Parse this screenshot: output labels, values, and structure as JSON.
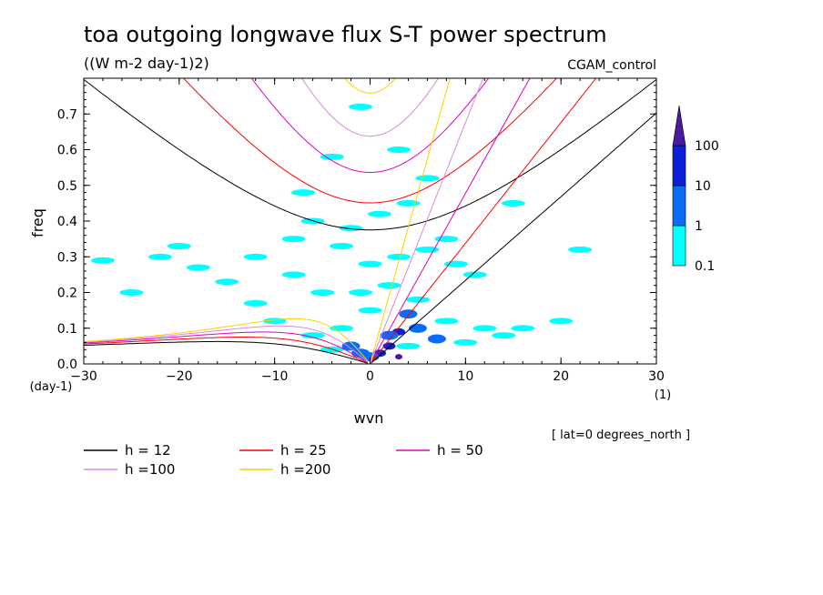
{
  "chart_data": {
    "type": "heatmap",
    "title": "toa outgoing longwave flux S-T power spectrum",
    "units_label": "((W m-2 day-1)2)",
    "experiment_label": "CGAM_control",
    "xlabel": "wvn",
    "ylabel": "freq",
    "x_unit_label": "(1)",
    "y_unit_label": "(day-1)",
    "xlim": [
      -30,
      30
    ],
    "ylim": [
      0,
      0.8
    ],
    "x_ticks": [
      "-30",
      "-20",
      "-10",
      "0",
      "10",
      "20",
      "30"
    ],
    "y_ticks": [
      "0.0",
      "0.1",
      "0.2",
      "0.3",
      "0.4",
      "0.5",
      "0.6",
      "0.7"
    ],
    "footer_note": "[ lat=0 degrees_north ]",
    "colorbar": {
      "levels": [
        "0.1",
        "1",
        "10",
        "100"
      ],
      "colors": [
        "#00ffff",
        "#0a6cf6",
        "#0a1fd6",
        "#4a1a9c"
      ]
    },
    "dispersion_curves": [
      {
        "label": "h = 12",
        "h": 12,
        "color": "#000000"
      },
      {
        "label": "h = 25",
        "h": 25,
        "color": "#ff0000"
      },
      {
        "label": "h = 50",
        "h": 50,
        "color": "#e000c0"
      },
      {
        "label": "h =100",
        "h": 100,
        "color": "#dd88dd"
      },
      {
        "label": "h =200",
        "h": 200,
        "color": "#ffd000"
      }
    ],
    "spectrum_blobs": [
      {
        "k": 1,
        "f": 0.03,
        "level": 2
      },
      {
        "k": 2,
        "f": 0.05,
        "level": 2
      },
      {
        "k": 3,
        "f": 0.09,
        "level": 2
      },
      {
        "k": 4,
        "f": 0.14,
        "level": 1
      },
      {
        "k": 0,
        "f": 0.02,
        "level": 1
      },
      {
        "k": -1,
        "f": 0.03,
        "level": 1
      },
      {
        "k": -2,
        "f": 0.05,
        "level": 1
      },
      {
        "k": 5,
        "f": 0.1,
        "level": 1
      },
      {
        "k": 7,
        "f": 0.07,
        "level": 1
      },
      {
        "k": 2,
        "f": 0.08,
        "level": 1
      },
      {
        "k": -6,
        "f": 0.08,
        "level": 0
      },
      {
        "k": -3,
        "f": 0.1,
        "level": 0
      },
      {
        "k": 0,
        "f": 0.15,
        "level": 0
      },
      {
        "k": 4,
        "f": 0.05,
        "level": 0
      },
      {
        "k": 8,
        "f": 0.12,
        "level": 0
      },
      {
        "k": 10,
        "f": 0.06,
        "level": 0
      },
      {
        "k": -10,
        "f": 0.12,
        "level": 0
      },
      {
        "k": -1,
        "f": 0.2,
        "level": 0
      },
      {
        "k": 2,
        "f": 0.22,
        "level": 0
      },
      {
        "k": 5,
        "f": 0.18,
        "level": 0
      },
      {
        "k": -5,
        "f": 0.2,
        "level": 0
      },
      {
        "k": -8,
        "f": 0.25,
        "level": 0
      },
      {
        "k": 0,
        "f": 0.28,
        "level": 0
      },
      {
        "k": 3,
        "f": 0.3,
        "level": 0
      },
      {
        "k": -3,
        "f": 0.33,
        "level": 0
      },
      {
        "k": 6,
        "f": 0.32,
        "level": 0
      },
      {
        "k": -2,
        "f": 0.38,
        "level": 0
      },
      {
        "k": -6,
        "f": 0.4,
        "level": 0
      },
      {
        "k": 1,
        "f": 0.42,
        "level": 0
      },
      {
        "k": 4,
        "f": 0.45,
        "level": 0
      },
      {
        "k": -8,
        "f": 0.35,
        "level": 0
      },
      {
        "k": 12,
        "f": 0.1,
        "level": 0
      },
      {
        "k": 14,
        "f": 0.08,
        "level": 0
      },
      {
        "k": -12,
        "f": 0.17,
        "level": 0
      },
      {
        "k": -15,
        "f": 0.23,
        "level": 0
      },
      {
        "k": -18,
        "f": 0.27,
        "level": 0
      },
      {
        "k": -22,
        "f": 0.3,
        "level": 0
      },
      {
        "k": -20,
        "f": 0.33,
        "level": 0
      },
      {
        "k": -25,
        "f": 0.2,
        "level": 0
      },
      {
        "k": 16,
        "f": 0.1,
        "level": 0
      },
      {
        "k": 20,
        "f": 0.12,
        "level": 0
      },
      {
        "k": 9,
        "f": 0.28,
        "level": 0
      },
      {
        "k": 8,
        "f": 0.35,
        "level": 0
      },
      {
        "k": 11,
        "f": 0.25,
        "level": 0
      },
      {
        "k": 6,
        "f": 0.52,
        "level": 0
      },
      {
        "k": -4,
        "f": 0.58,
        "level": 0
      },
      {
        "k": 3,
        "f": 0.6,
        "level": 0
      },
      {
        "k": -7,
        "f": 0.48,
        "level": 0
      },
      {
        "k": 22,
        "f": 0.32,
        "level": 0
      },
      {
        "k": -28,
        "f": 0.29,
        "level": 0
      },
      {
        "k": -12,
        "f": 0.3,
        "level": 0
      },
      {
        "k": 15,
        "f": 0.45,
        "level": 0
      },
      {
        "k": -1,
        "f": 0.72,
        "level": 0
      },
      {
        "k": -4,
        "f": 0.04,
        "level": 0
      },
      {
        "k": 3,
        "f": 0.02,
        "level": 3
      }
    ]
  }
}
